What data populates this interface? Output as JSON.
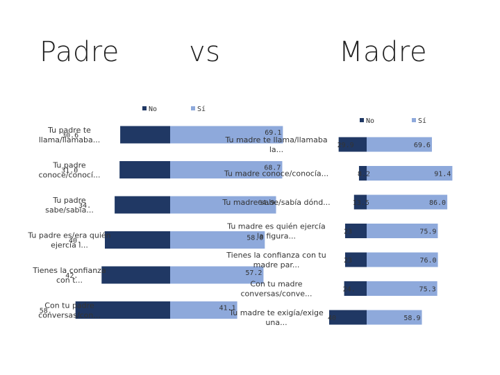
{
  "titles": {
    "left": "Padre",
    "middle": "vs",
    "right": "Madre"
  },
  "colors": {
    "no": "#203864",
    "si": "#8EA9DB"
  },
  "chart_data": [
    {
      "type": "bar",
      "orientation": "horizontal",
      "stacked": true,
      "panel": "padre",
      "legend": [
        "No",
        "Sí"
      ],
      "legend_position": "top",
      "categories": [
        "Tu padre te llama/llamaba...",
        "Tu padre conoce/conocí...",
        "Tu padre sabe/sabía...",
        "Tu padre es/era quién ejercía l...",
        "Tienes la confianza con t...",
        "Con tu padre conversas/con..."
      ],
      "series": [
        {
          "name": "No",
          "values": [
            30.6,
            31.0,
            34.0,
            40.0,
            42.0,
            58.0
          ],
          "labels": [
            "30.6",
            "31.0",
            "34.",
            "40.",
            "42.",
            "58."
          ]
        },
        {
          "name": "Sí",
          "values": [
            69.1,
            68.7,
            64.9,
            58.0,
            57.2,
            41.1
          ],
          "labels": [
            "69.1",
            "68.7",
            "64.9",
            "58.0",
            "57.2",
            "41.1"
          ]
        }
      ],
      "xlim": [
        0,
        100
      ]
    },
    {
      "type": "bar",
      "orientation": "horizontal",
      "stacked": true,
      "panel": "madre",
      "legend": [
        "No",
        "Sí"
      ],
      "legend_position": "top",
      "categories": [
        "Tu madre te llama/llamaba la...",
        "Tu madre conoce/conocía...",
        "Tu madre sabe/sabía dónd...",
        "Tu madre es quién ejercía la figura...",
        "Tienes la confianza con tu madre par...",
        "Con tu madre conversas/conve...",
        "Tu madre te exigía/exige una..."
      ],
      "series": [
        {
          "name": "No",
          "values": [
            29.9,
            8.2,
            13.5,
            23.0,
            23.0,
            24.0,
            40.0
          ],
          "labels": [
            "29.9",
            "8.2",
            "13.5",
            "23",
            "23",
            "24.",
            "40"
          ]
        },
        {
          "name": "Sí",
          "values": [
            69.6,
            91.4,
            86.0,
            75.9,
            76.0,
            75.3,
            58.9
          ],
          "labels": [
            "69.6",
            "91.4",
            "86.0",
            "75.9",
            "76.0",
            "75.3",
            "58.9"
          ]
        }
      ],
      "xlim": [
        0,
        100
      ]
    }
  ]
}
